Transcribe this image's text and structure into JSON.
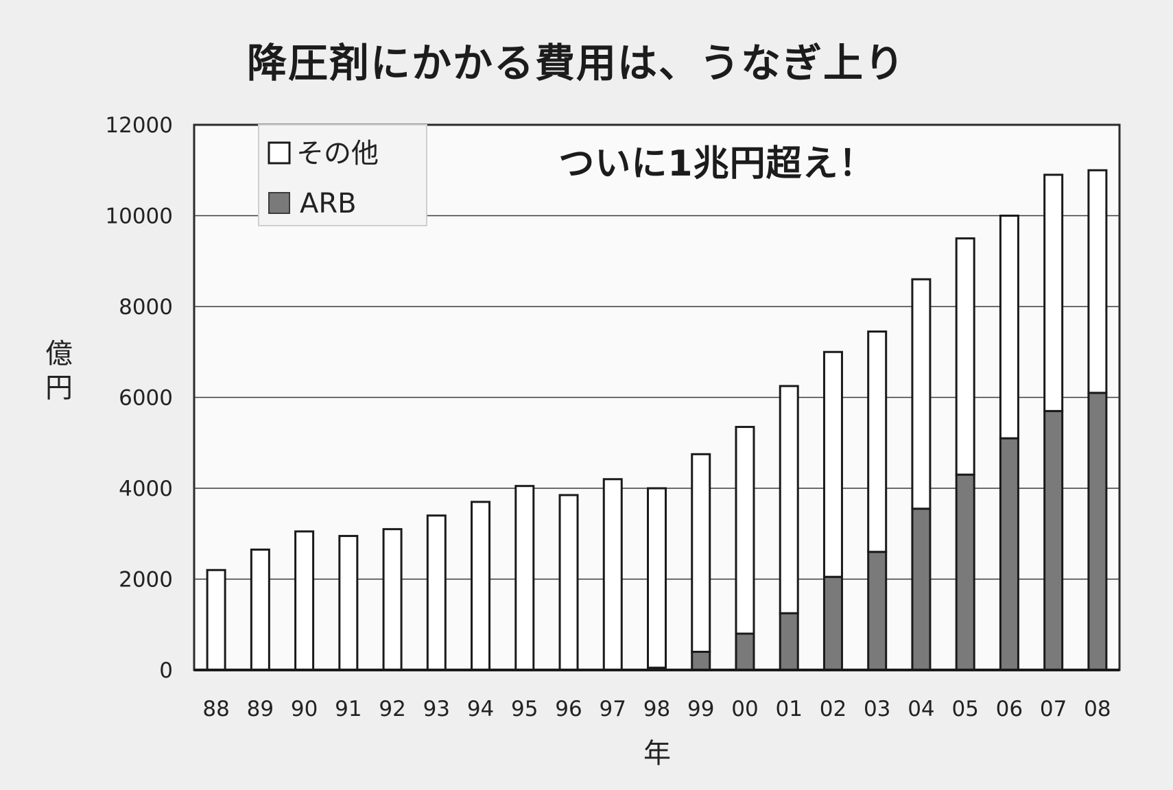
{
  "chart_data": {
    "type": "bar",
    "stacked": true,
    "title": "降圧剤にかかる費用は、うなぎ上り",
    "annotation": "ついに1兆円超え！",
    "xlabel": "年",
    "ylabel": "億円",
    "ylim": [
      0,
      12000
    ],
    "yticks": [
      0,
      2000,
      4000,
      6000,
      8000,
      10000,
      12000
    ],
    "grid": true,
    "legend_position": "top-left",
    "categories": [
      "88",
      "89",
      "90",
      "91",
      "92",
      "93",
      "94",
      "95",
      "96",
      "97",
      "98",
      "99",
      "00",
      "01",
      "02",
      "03",
      "04",
      "05",
      "06",
      "07",
      "08"
    ],
    "series": [
      {
        "name": "ARB",
        "color": "#7a7a7a",
        "values": [
          0,
          0,
          0,
          0,
          0,
          0,
          0,
          0,
          0,
          0,
          50,
          400,
          800,
          1250,
          2050,
          2600,
          3550,
          4300,
          5100,
          5700,
          6100
        ]
      },
      {
        "name": "その他",
        "color": "#ffffff",
        "values": [
          2200,
          2650,
          3050,
          2950,
          3100,
          3400,
          3700,
          4050,
          3850,
          4200,
          3950,
          4350,
          4550,
          5000,
          4950,
          4850,
          5050,
          5200,
          4900,
          5200,
          4900
        ]
      }
    ]
  }
}
